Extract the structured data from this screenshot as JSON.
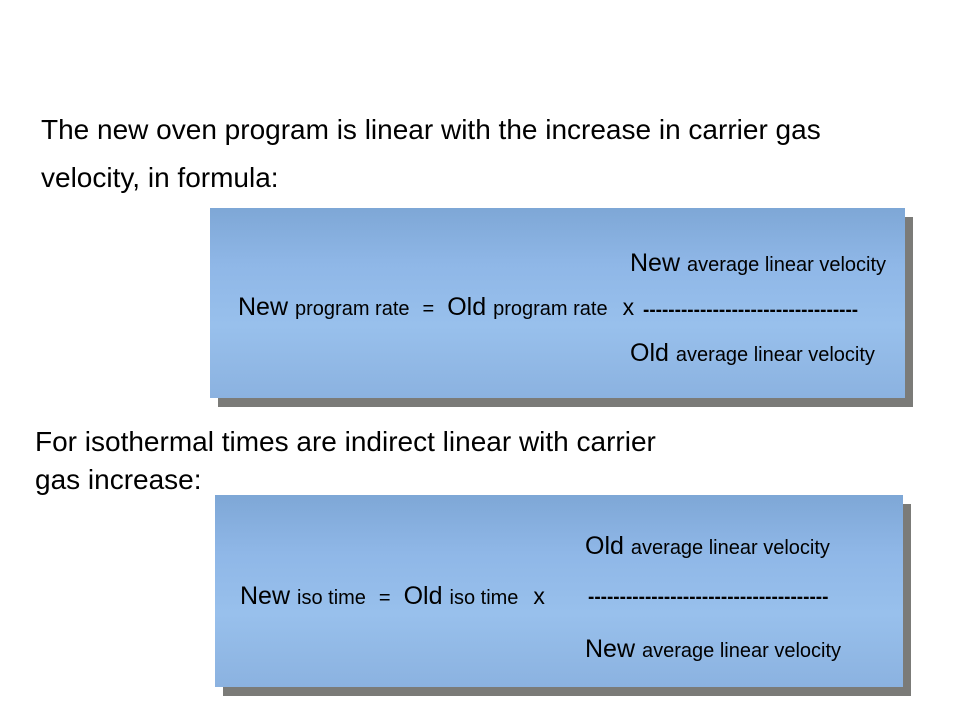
{
  "colors": {
    "slide_background": "#ffffff",
    "box_fill_top": "#7ea7d6",
    "box_fill_middle": "#98c0ec",
    "box_fill_bottom": "#8bb2e0",
    "box_shadow": "#7b7b78",
    "text": "#000000"
  },
  "intro": {
    "line1": "The new oven program is linear with the increase in carrier gas",
    "line2": "velocity, in formula:"
  },
  "iso_intro": {
    "line1": "For isothermal times are indirect linear with carrier",
    "line2": "gas increase:"
  },
  "formula1": {
    "numerator_big": "New",
    "numerator_small": "average linear velocity",
    "lhs_big": "New",
    "lhs_small": "program rate",
    "equals": "=",
    "rhs_big": "Old",
    "rhs_small": "program rate",
    "times": "x",
    "bar": "----------------------------------",
    "denominator_big": "Old",
    "denominator_small": "average linear velocity"
  },
  "formula2": {
    "numerator_big": "Old",
    "numerator_small": "average linear velocity",
    "lhs_big": "New",
    "lhs_small": "iso time",
    "equals": "=",
    "rhs_big": "Old",
    "rhs_small": "iso time",
    "times": "x",
    "bar": "--------------------------------------",
    "denominator_big": "New",
    "denominator_small": "average linear velocity"
  }
}
